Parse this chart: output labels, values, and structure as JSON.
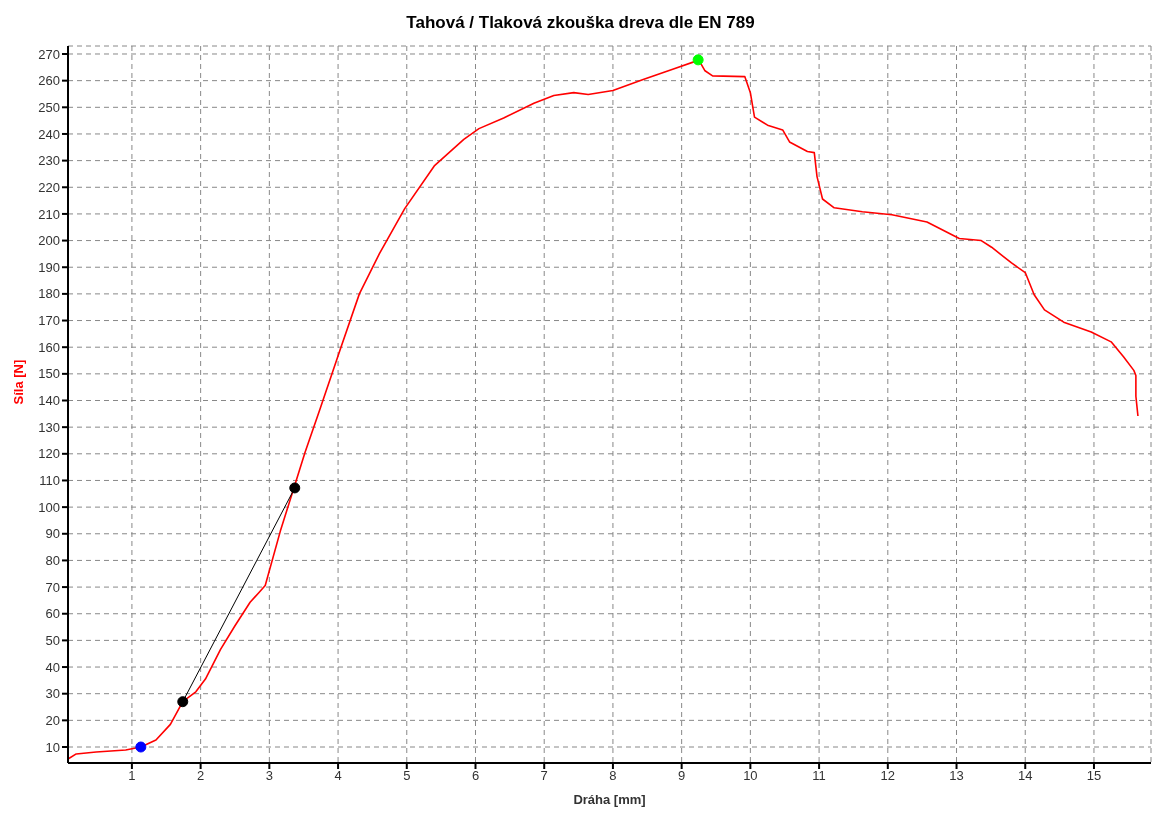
{
  "chart_data": {
    "type": "line",
    "title": "Tahová / Tlaková zkouška dreva dle EN 789",
    "xlabel": "Dráha [mm]",
    "ylabel": "Síla [N]",
    "xlim": [
      0.07,
      15.83
    ],
    "ylim": [
      4,
      273
    ],
    "xticks": [
      1,
      2,
      3,
      4,
      5,
      6,
      7,
      8,
      9,
      10,
      11,
      12,
      13,
      14,
      15
    ],
    "yticks": [
      10,
      20,
      30,
      40,
      50,
      60,
      70,
      80,
      90,
      100,
      110,
      120,
      130,
      140,
      150,
      160,
      170,
      180,
      190,
      200,
      210,
      220,
      230,
      240,
      250,
      260,
      270
    ],
    "grid": true,
    "series": [
      {
        "color": "#ff0000",
        "marker": "none",
        "x": [
          0.07,
          0.19,
          0.48,
          0.91,
          1.13,
          1.35,
          1.56,
          1.74,
          1.93,
          2.07,
          2.29,
          2.5,
          2.72,
          2.84,
          2.94,
          3.16,
          3.34,
          3.52,
          3.74,
          4.03,
          4.31,
          4.6,
          4.97,
          5.4,
          5.83,
          6.05,
          6.41,
          6.85,
          7.14,
          7.43,
          7.64,
          8.0,
          8.44,
          8.88,
          9.25,
          9.34,
          9.45,
          9.92,
          10.0,
          10.06,
          10.25,
          10.47,
          10.57,
          10.83,
          10.93,
          10.97,
          11.05,
          11.22,
          11.63,
          12.06,
          12.57,
          13.04,
          13.36,
          13.51,
          13.8,
          14.0,
          14.13,
          14.28,
          14.56,
          14.96,
          15.25,
          15.43,
          15.58,
          15.61,
          15.61,
          15.64
        ],
        "values": [
          5.5,
          7.4,
          8.1,
          8.9,
          10,
          12.6,
          18.5,
          27,
          30.7,
          35.5,
          46.6,
          55.5,
          64.3,
          67.7,
          70.6,
          91,
          105.8,
          120.6,
          137,
          159,
          180,
          195,
          212,
          228,
          238,
          242,
          246,
          251.5,
          254.4,
          255.5,
          254.8,
          256.3,
          260.4,
          264.4,
          267.7,
          263.7,
          261.8,
          261.5,
          255.5,
          246.3,
          243.3,
          241.5,
          237,
          233.4,
          233,
          224,
          215.6,
          212.3,
          210.8,
          209.7,
          207,
          200.8,
          200,
          197.5,
          191.6,
          188,
          179.7,
          174,
          169.4,
          165.7,
          162,
          156.4,
          151.3,
          149.4,
          141.6,
          134.2
        ]
      },
      {
        "color": "#000000",
        "marker": "circle",
        "x": [
          1.74,
          3.37
        ],
        "values": [
          27,
          107.2
        ]
      },
      {
        "type": "scatter",
        "color": "#0000ff",
        "marker": "circle",
        "x": [
          1.13
        ],
        "values": [
          10
        ]
      },
      {
        "type": "scatter",
        "color": "#00ff00",
        "marker": "circle",
        "x": [
          9.24
        ],
        "values": [
          267.8
        ]
      }
    ]
  }
}
